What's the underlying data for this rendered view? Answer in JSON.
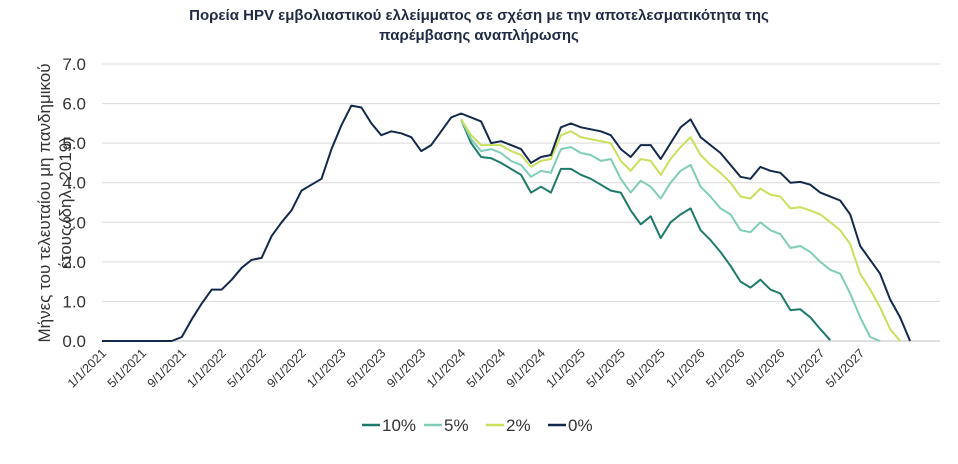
{
  "chart_data": {
    "type": "line",
    "title_line1": "Πορεία HPV εμβολιαστικού ελλείμματος σε σχέση με την αποτελεσματικότητα της",
    "title_line2": "παρέμβασης αναπλήρωσης",
    "ylabel_line1": "Μήνες του τελευταίου μη πανδημικού",
    "ylabel_line2": "έτους (δηλ. 2019)",
    "xlabel": "",
    "ylim": [
      0,
      7
    ],
    "y_ticks": [
      "0.0",
      "1.0",
      "2.0",
      "3.0",
      "4.0",
      "5.0",
      "6.0",
      "7.0"
    ],
    "x_ticks": [
      "1/1/2021",
      "5/1/2021",
      "9/1/2021",
      "1/1/2022",
      "5/1/2022",
      "9/1/2022",
      "1/1/2023",
      "5/1/2023",
      "9/1/2023",
      "1/1/2024",
      "5/1/2024",
      "9/1/2024",
      "1/1/2025",
      "5/1/2025",
      "9/1/2025",
      "1/1/2026",
      "5/1/2026",
      "9/1/2026",
      "1/1/2027",
      "5/1/2027"
    ],
    "grid": true,
    "legend_position": "bottom",
    "series": [
      {
        "name": "10%",
        "color": "#1e7b6b",
        "points": [
          [
            "2024-01-01",
            5.6
          ],
          [
            "2024-02-01",
            5.0
          ],
          [
            "2024-03-01",
            4.65
          ],
          [
            "2024-04-01",
            4.62
          ],
          [
            "2024-05-01",
            4.5
          ],
          [
            "2024-06-01",
            4.35
          ],
          [
            "2024-07-01",
            4.2
          ],
          [
            "2024-08-01",
            3.75
          ],
          [
            "2024-09-01",
            3.9
          ],
          [
            "2024-10-01",
            3.75
          ],
          [
            "2024-11-01",
            4.35
          ],
          [
            "2024-12-01",
            4.35
          ],
          [
            "2025-01-01",
            4.2
          ],
          [
            "2025-02-01",
            4.1
          ],
          [
            "2025-03-01",
            3.95
          ],
          [
            "2025-04-01",
            3.8
          ],
          [
            "2025-05-01",
            3.75
          ],
          [
            "2025-06-01",
            3.3
          ],
          [
            "2025-07-01",
            2.95
          ],
          [
            "2025-08-01",
            3.15
          ],
          [
            "2025-09-01",
            2.6
          ],
          [
            "2025-10-01",
            3.0
          ],
          [
            "2025-11-01",
            3.2
          ],
          [
            "2025-12-01",
            3.35
          ],
          [
            "2026-01-01",
            2.8
          ],
          [
            "2026-02-01",
            2.55
          ],
          [
            "2026-03-01",
            2.25
          ],
          [
            "2026-04-01",
            1.9
          ],
          [
            "2026-05-01",
            1.5
          ],
          [
            "2026-06-01",
            1.35
          ],
          [
            "2026-07-01",
            1.55
          ],
          [
            "2026-08-01",
            1.3
          ],
          [
            "2026-09-01",
            1.2
          ],
          [
            "2026-10-01",
            0.78
          ],
          [
            "2026-11-01",
            0.8
          ],
          [
            "2026-12-01",
            0.6
          ],
          [
            "2027-01-01",
            0.3
          ],
          [
            "2027-02-01",
            0.02
          ]
        ]
      },
      {
        "name": "5%",
        "color": "#7fcdb8",
        "points": [
          [
            "2024-01-01",
            5.6
          ],
          [
            "2024-02-01",
            5.1
          ],
          [
            "2024-03-01",
            4.8
          ],
          [
            "2024-04-01",
            4.85
          ],
          [
            "2024-05-01",
            4.75
          ],
          [
            "2024-06-01",
            4.55
          ],
          [
            "2024-07-01",
            4.45
          ],
          [
            "2024-08-01",
            4.15
          ],
          [
            "2024-09-01",
            4.3
          ],
          [
            "2024-10-01",
            4.25
          ],
          [
            "2024-11-01",
            4.85
          ],
          [
            "2024-12-01",
            4.9
          ],
          [
            "2025-01-01",
            4.75
          ],
          [
            "2025-02-01",
            4.7
          ],
          [
            "2025-03-01",
            4.55
          ],
          [
            "2025-04-01",
            4.6
          ],
          [
            "2025-05-01",
            4.1
          ],
          [
            "2025-06-01",
            3.75
          ],
          [
            "2025-07-01",
            4.05
          ],
          [
            "2025-08-01",
            3.9
          ],
          [
            "2025-09-01",
            3.6
          ],
          [
            "2025-10-01",
            4.0
          ],
          [
            "2025-11-01",
            4.3
          ],
          [
            "2025-12-01",
            4.45
          ],
          [
            "2026-01-01",
            3.9
          ],
          [
            "2026-02-01",
            3.65
          ],
          [
            "2026-03-01",
            3.35
          ],
          [
            "2026-04-01",
            3.2
          ],
          [
            "2026-05-01",
            2.8
          ],
          [
            "2026-06-01",
            2.75
          ],
          [
            "2026-07-01",
            3.0
          ],
          [
            "2026-08-01",
            2.8
          ],
          [
            "2026-09-01",
            2.7
          ],
          [
            "2026-10-01",
            2.35
          ],
          [
            "2026-11-01",
            2.4
          ],
          [
            "2026-12-01",
            2.25
          ],
          [
            "2027-01-01",
            2.0
          ],
          [
            "2027-02-01",
            1.8
          ],
          [
            "2027-03-01",
            1.7
          ],
          [
            "2027-04-01",
            1.2
          ],
          [
            "2027-05-01",
            0.6
          ],
          [
            "2027-06-01",
            0.1
          ],
          [
            "2027-07-01",
            0.0
          ]
        ]
      },
      {
        "name": "2%",
        "color": "#c8e05a",
        "points": [
          [
            "2024-01-01",
            5.6
          ],
          [
            "2024-02-01",
            5.2
          ],
          [
            "2024-03-01",
            4.95
          ],
          [
            "2024-04-01",
            4.95
          ],
          [
            "2024-05-01",
            4.95
          ],
          [
            "2024-06-01",
            4.8
          ],
          [
            "2024-07-01",
            4.7
          ],
          [
            "2024-08-01",
            4.4
          ],
          [
            "2024-09-01",
            4.55
          ],
          [
            "2024-10-01",
            4.6
          ],
          [
            "2024-11-01",
            5.2
          ],
          [
            "2024-12-01",
            5.3
          ],
          [
            "2025-01-01",
            5.15
          ],
          [
            "2025-02-01",
            5.1
          ],
          [
            "2025-03-01",
            5.05
          ],
          [
            "2025-04-01",
            5.0
          ],
          [
            "2025-05-01",
            4.55
          ],
          [
            "2025-06-01",
            4.3
          ],
          [
            "2025-07-01",
            4.6
          ],
          [
            "2025-08-01",
            4.55
          ],
          [
            "2025-09-01",
            4.2
          ],
          [
            "2025-10-01",
            4.6
          ],
          [
            "2025-11-01",
            4.9
          ],
          [
            "2025-12-01",
            5.15
          ],
          [
            "2026-01-01",
            4.7
          ],
          [
            "2026-02-01",
            4.45
          ],
          [
            "2026-03-01",
            4.25
          ],
          [
            "2026-04-01",
            4.0
          ],
          [
            "2026-05-01",
            3.65
          ],
          [
            "2026-06-01",
            3.6
          ],
          [
            "2026-07-01",
            3.85
          ],
          [
            "2026-08-01",
            3.7
          ],
          [
            "2026-09-01",
            3.65
          ],
          [
            "2026-10-01",
            3.35
          ],
          [
            "2026-11-01",
            3.38
          ],
          [
            "2026-12-01",
            3.3
          ],
          [
            "2027-01-01",
            3.2
          ],
          [
            "2027-02-01",
            3.0
          ],
          [
            "2027-03-01",
            2.8
          ],
          [
            "2027-04-01",
            2.45
          ],
          [
            "2027-05-01",
            1.7
          ],
          [
            "2027-06-01",
            1.3
          ],
          [
            "2027-07-01",
            0.85
          ],
          [
            "2027-08-01",
            0.3
          ],
          [
            "2027-09-01",
            0.0
          ]
        ]
      },
      {
        "name": "0%",
        "color": "#13294b",
        "points": [
          [
            "2021-01-01",
            0.0
          ],
          [
            "2021-02-01",
            0.0
          ],
          [
            "2021-03-01",
            0.0
          ],
          [
            "2021-04-01",
            0.0
          ],
          [
            "2021-05-01",
            0.0
          ],
          [
            "2021-06-01",
            0.0
          ],
          [
            "2021-07-01",
            0.0
          ],
          [
            "2021-08-01",
            0.0
          ],
          [
            "2021-09-01",
            0.1
          ],
          [
            "2021-10-01",
            0.55
          ],
          [
            "2021-11-01",
            0.95
          ],
          [
            "2021-12-01",
            1.3
          ],
          [
            "2022-01-01",
            1.3
          ],
          [
            "2022-02-01",
            1.55
          ],
          [
            "2022-03-01",
            1.85
          ],
          [
            "2022-04-01",
            2.05
          ],
          [
            "2022-05-01",
            2.1
          ],
          [
            "2022-06-01",
            2.65
          ],
          [
            "2022-07-01",
            3.0
          ],
          [
            "2022-08-01",
            3.3
          ],
          [
            "2022-09-01",
            3.8
          ],
          [
            "2022-10-01",
            3.95
          ],
          [
            "2022-11-01",
            4.1
          ],
          [
            "2022-12-01",
            4.85
          ],
          [
            "2023-01-01",
            5.45
          ],
          [
            "2023-02-01",
            5.95
          ],
          [
            "2023-03-01",
            5.9
          ],
          [
            "2023-04-01",
            5.5
          ],
          [
            "2023-05-01",
            5.2
          ],
          [
            "2023-06-01",
            5.3
          ],
          [
            "2023-07-01",
            5.25
          ],
          [
            "2023-08-01",
            5.15
          ],
          [
            "2023-09-01",
            4.8
          ],
          [
            "2023-10-01",
            4.95
          ],
          [
            "2023-11-01",
            5.3
          ],
          [
            "2023-12-01",
            5.65
          ],
          [
            "2024-01-01",
            5.75
          ],
          [
            "2024-02-01",
            5.65
          ],
          [
            "2024-03-01",
            5.55
          ],
          [
            "2024-04-01",
            5.0
          ],
          [
            "2024-05-01",
            5.05
          ],
          [
            "2024-06-01",
            4.95
          ],
          [
            "2024-07-01",
            4.85
          ],
          [
            "2024-08-01",
            4.5
          ],
          [
            "2024-09-01",
            4.65
          ],
          [
            "2024-10-01",
            4.7
          ],
          [
            "2024-11-01",
            5.4
          ],
          [
            "2024-12-01",
            5.5
          ],
          [
            "2025-01-01",
            5.4
          ],
          [
            "2025-02-01",
            5.35
          ],
          [
            "2025-03-01",
            5.3
          ],
          [
            "2025-04-01",
            5.2
          ],
          [
            "2025-05-01",
            4.85
          ],
          [
            "2025-06-01",
            4.65
          ],
          [
            "2025-07-01",
            4.95
          ],
          [
            "2025-08-01",
            4.95
          ],
          [
            "2025-09-01",
            4.6
          ],
          [
            "2025-10-01",
            5.0
          ],
          [
            "2025-11-01",
            5.4
          ],
          [
            "2025-12-01",
            5.6
          ],
          [
            "2026-01-01",
            5.15
          ],
          [
            "2026-02-01",
            4.95
          ],
          [
            "2026-03-01",
            4.75
          ],
          [
            "2026-04-01",
            4.45
          ],
          [
            "2026-05-01",
            4.15
          ],
          [
            "2026-06-01",
            4.1
          ],
          [
            "2026-07-01",
            4.4
          ],
          [
            "2026-08-01",
            4.3
          ],
          [
            "2026-09-01",
            4.25
          ],
          [
            "2026-10-01",
            4.0
          ],
          [
            "2026-11-01",
            4.02
          ],
          [
            "2026-12-01",
            3.95
          ],
          [
            "2027-01-01",
            3.75
          ],
          [
            "2027-02-01",
            3.65
          ],
          [
            "2027-03-01",
            3.55
          ],
          [
            "2027-04-01",
            3.2
          ],
          [
            "2027-05-01",
            2.4
          ],
          [
            "2027-06-01",
            2.05
          ],
          [
            "2027-07-01",
            1.7
          ],
          [
            "2027-08-01",
            1.05
          ],
          [
            "2027-09-01",
            0.6
          ],
          [
            "2027-10-01",
            0.0
          ]
        ]
      }
    ]
  }
}
